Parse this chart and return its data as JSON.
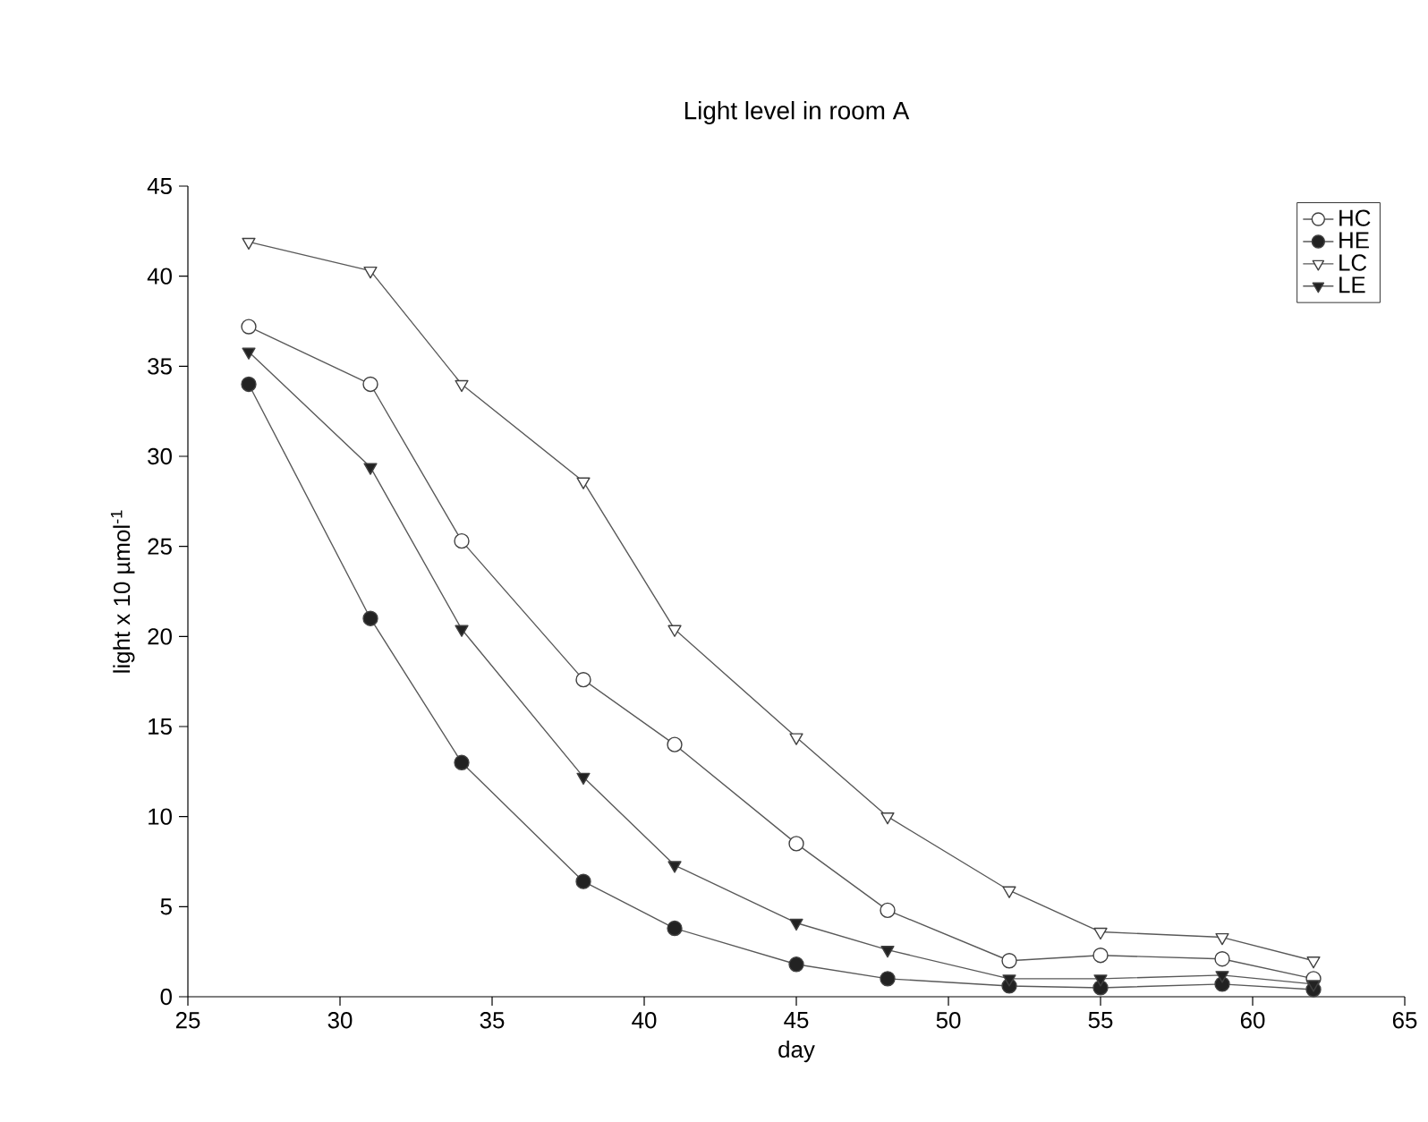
{
  "chart_data": {
    "type": "line",
    "title": "Light level in room A",
    "xlabel": "day",
    "ylabel": "light x 10 µmol$^{-1}$",
    "x": [
      27,
      31,
      34,
      38,
      41,
      45,
      48,
      52,
      55,
      59,
      62
    ],
    "series": [
      {
        "name": "HC",
        "color": "#ffffff",
        "marker": "circle",
        "values": [
          37.2,
          34,
          25.3,
          17.6,
          14,
          8.5,
          4.8,
          2.0,
          2.3,
          2.1,
          1.0
        ]
      },
      {
        "name": "HE",
        "color": "#222222",
        "marker": "circle",
        "values": [
          34,
          21,
          13,
          6.4,
          3.8,
          1.8,
          1.0,
          0.6,
          0.5,
          0.7,
          0.4
        ]
      },
      {
        "name": "LC",
        "color": "#ffffff",
        "marker": "triangle",
        "values": [
          41.9,
          40.3,
          34,
          28.6,
          20.4,
          14.4,
          10,
          5.9,
          3.6,
          3.3,
          2.0
        ]
      },
      {
        "name": "LE",
        "color": "#222222",
        "marker": "triangle",
        "values": [
          35.8,
          29.4,
          20.4,
          12.2,
          7.3,
          4.1,
          2.6,
          1.0,
          1.0,
          1.2,
          0.7
        ]
      }
    ],
    "xlim": [
      25,
      65
    ],
    "xticks": [
      25,
      30,
      35,
      40,
      45,
      50,
      55,
      60,
      65
    ],
    "ylim": [
      0,
      45
    ],
    "yticks": [
      0,
      5,
      10,
      15,
      20,
      25,
      30,
      35,
      40,
      45
    ],
    "legend": "top right",
    "line_style": "solid",
    "grid": false
  }
}
